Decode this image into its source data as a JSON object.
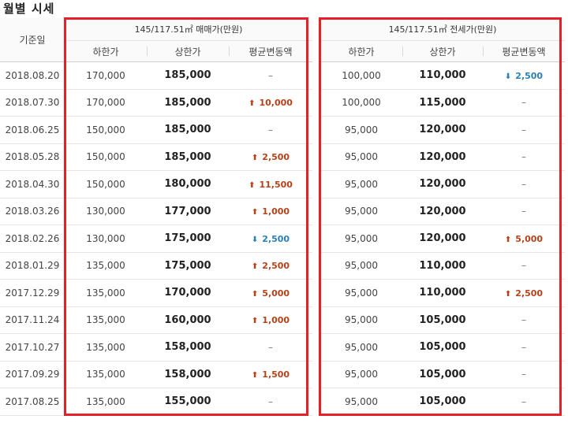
{
  "page_title": "월별 시세",
  "header": {
    "date_col": "기준일",
    "sale_group": "145/117.51㎡ 매매가(만원)",
    "jeonse_group": "145/117.51㎡ 전세가(만원)",
    "low": "하한가",
    "high": "상한가",
    "avg_change": "평균변동액"
  },
  "rows": [
    {
      "date": "2018.08.20",
      "sale_low": "170,000",
      "sale_high": "185,000",
      "sale_chg": "–",
      "sale_dir": "none",
      "jeon_low": "100,000",
      "jeon_high": "110,000",
      "jeon_chg": "2,500",
      "jeon_dir": "down"
    },
    {
      "date": "2018.07.30",
      "sale_low": "170,000",
      "sale_high": "185,000",
      "sale_chg": "10,000",
      "sale_dir": "up",
      "jeon_low": "100,000",
      "jeon_high": "115,000",
      "jeon_chg": "–",
      "jeon_dir": "none"
    },
    {
      "date": "2018.06.25",
      "sale_low": "150,000",
      "sale_high": "185,000",
      "sale_chg": "–",
      "sale_dir": "none",
      "jeon_low": "95,000",
      "jeon_high": "120,000",
      "jeon_chg": "–",
      "jeon_dir": "none"
    },
    {
      "date": "2018.05.28",
      "sale_low": "150,000",
      "sale_high": "185,000",
      "sale_chg": "2,500",
      "sale_dir": "up",
      "jeon_low": "95,000",
      "jeon_high": "120,000",
      "jeon_chg": "–",
      "jeon_dir": "none"
    },
    {
      "date": "2018.04.30",
      "sale_low": "150,000",
      "sale_high": "180,000",
      "sale_chg": "11,500",
      "sale_dir": "up",
      "jeon_low": "95,000",
      "jeon_high": "120,000",
      "jeon_chg": "–",
      "jeon_dir": "none"
    },
    {
      "date": "2018.03.26",
      "sale_low": "130,000",
      "sale_high": "177,000",
      "sale_chg": "1,000",
      "sale_dir": "up",
      "jeon_low": "95,000",
      "jeon_high": "120,000",
      "jeon_chg": "–",
      "jeon_dir": "none"
    },
    {
      "date": "2018.02.26",
      "sale_low": "130,000",
      "sale_high": "175,000",
      "sale_chg": "2,500",
      "sale_dir": "down",
      "jeon_low": "95,000",
      "jeon_high": "120,000",
      "jeon_chg": "5,000",
      "jeon_dir": "up"
    },
    {
      "date": "2018.01.29",
      "sale_low": "135,000",
      "sale_high": "175,000",
      "sale_chg": "2,500",
      "sale_dir": "up",
      "jeon_low": "95,000",
      "jeon_high": "110,000",
      "jeon_chg": "–",
      "jeon_dir": "none"
    },
    {
      "date": "2017.12.29",
      "sale_low": "135,000",
      "sale_high": "170,000",
      "sale_chg": "5,000",
      "sale_dir": "up",
      "jeon_low": "95,000",
      "jeon_high": "110,000",
      "jeon_chg": "2,500",
      "jeon_dir": "up"
    },
    {
      "date": "2017.11.24",
      "sale_low": "135,000",
      "sale_high": "160,000",
      "sale_chg": "1,000",
      "sale_dir": "up",
      "jeon_low": "95,000",
      "jeon_high": "105,000",
      "jeon_chg": "–",
      "jeon_dir": "none"
    },
    {
      "date": "2017.10.27",
      "sale_low": "135,000",
      "sale_high": "158,000",
      "sale_chg": "–",
      "sale_dir": "none",
      "jeon_low": "95,000",
      "jeon_high": "105,000",
      "jeon_chg": "–",
      "jeon_dir": "none"
    },
    {
      "date": "2017.09.29",
      "sale_low": "135,000",
      "sale_high": "158,000",
      "sale_chg": "1,500",
      "sale_dir": "up",
      "jeon_low": "95,000",
      "jeon_high": "105,000",
      "jeon_chg": "–",
      "jeon_dir": "none"
    },
    {
      "date": "2017.08.25",
      "sale_low": "135,000",
      "sale_high": "155,000",
      "sale_chg": "–",
      "sale_dir": "none",
      "jeon_low": "95,000",
      "jeon_high": "105,000",
      "jeon_chg": "–",
      "jeon_dir": "none"
    }
  ],
  "icons": {
    "up": "arrow-up-icon",
    "down": "arrow-down-icon"
  },
  "colors": {
    "highlight_box": "#e5202b",
    "up": "#b5421a",
    "down": "#2a7fb6"
  }
}
